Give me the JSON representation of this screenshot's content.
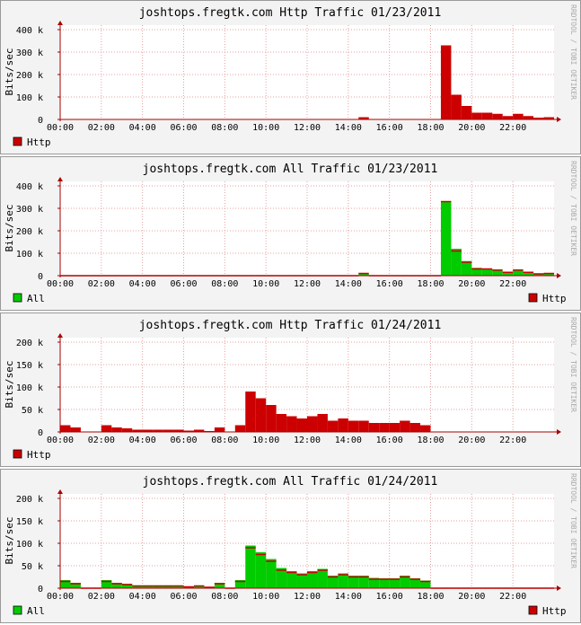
{
  "chart_data": [
    {
      "type": "bar",
      "title": "joshtops.fregtk.com Http Traffic 01/23/2011",
      "y_label": "Bits/sec",
      "watermark": "RRDTOOL / TOBI OETIKER",
      "grid": true,
      "xlim": [
        0,
        24
      ],
      "ylim": [
        0,
        420000
      ],
      "xticks": [
        {
          "value": 0,
          "label": "00:00"
        },
        {
          "value": 2,
          "label": "02:00"
        },
        {
          "value": 4,
          "label": "04:00"
        },
        {
          "value": 6,
          "label": "06:00"
        },
        {
          "value": 8,
          "label": "08:00"
        },
        {
          "value": 10,
          "label": "10:00"
        },
        {
          "value": 12,
          "label": "12:00"
        },
        {
          "value": 14,
          "label": "14:00"
        },
        {
          "value": 16,
          "label": "16:00"
        },
        {
          "value": 18,
          "label": "18:00"
        },
        {
          "value": 20,
          "label": "20:00"
        },
        {
          "value": 22,
          "label": "22:00"
        }
      ],
      "yticks": [
        0,
        {
          "value": 100000,
          "label": "100 k"
        },
        {
          "value": 200000,
          "label": "200 k"
        },
        {
          "value": 300000,
          "label": "300 k"
        },
        {
          "value": 400000,
          "label": "400 k"
        }
      ],
      "x": [
        0,
        0.5,
        1,
        1.5,
        2,
        2.5,
        3,
        3.5,
        4,
        4.5,
        5,
        5.5,
        6,
        6.5,
        7,
        7.5,
        8,
        8.5,
        9,
        9.5,
        10,
        10.5,
        11,
        11.5,
        12,
        12.5,
        13,
        13.5,
        14,
        14.5,
        15,
        15.5,
        16,
        16.5,
        17,
        17.5,
        18,
        18.5,
        19,
        19.5,
        20,
        20.5,
        21,
        21.5,
        22,
        22.5,
        23,
        23.5
      ],
      "series": [
        {
          "name": "Http",
          "color": "#cc0000",
          "style": "bar",
          "values": [
            0,
            0,
            0,
            0,
            0,
            0,
            0,
            0,
            0,
            0,
            0,
            0,
            0,
            0,
            0,
            0,
            0,
            0,
            0,
            0,
            0,
            0,
            0,
            0,
            0,
            0,
            0,
            0,
            0,
            10000,
            0,
            0,
            0,
            0,
            0,
            0,
            0,
            330000,
            110000,
            60000,
            30000,
            30000,
            25000,
            15000,
            25000,
            15000,
            8000,
            10000
          ]
        }
      ]
    },
    {
      "type": "bar",
      "title": "joshtops.fregtk.com All Traffic 01/23/2011",
      "y_label": "Bits/sec",
      "watermark": "RRDTOOL / TOBI OETIKER",
      "grid": true,
      "xlim": [
        0,
        24
      ],
      "ylim": [
        0,
        420000
      ],
      "xticks": [
        {
          "value": 0,
          "label": "00:00"
        },
        {
          "value": 2,
          "label": "02:00"
        },
        {
          "value": 4,
          "label": "04:00"
        },
        {
          "value": 6,
          "label": "06:00"
        },
        {
          "value": 8,
          "label": "08:00"
        },
        {
          "value": 10,
          "label": "10:00"
        },
        {
          "value": 12,
          "label": "12:00"
        },
        {
          "value": 14,
          "label": "14:00"
        },
        {
          "value": 16,
          "label": "16:00"
        },
        {
          "value": 18,
          "label": "18:00"
        },
        {
          "value": 20,
          "label": "20:00"
        },
        {
          "value": 22,
          "label": "22:00"
        }
      ],
      "yticks": [
        0,
        {
          "value": 100000,
          "label": "100 k"
        },
        {
          "value": 200000,
          "label": "200 k"
        },
        {
          "value": 300000,
          "label": "300 k"
        },
        {
          "value": 400000,
          "label": "400 k"
        }
      ],
      "x": [
        0,
        0.5,
        1,
        1.5,
        2,
        2.5,
        3,
        3.5,
        4,
        4.5,
        5,
        5.5,
        6,
        6.5,
        7,
        7.5,
        8,
        8.5,
        9,
        9.5,
        10,
        10.5,
        11,
        11.5,
        12,
        12.5,
        13,
        13.5,
        14,
        14.5,
        15,
        15.5,
        16,
        16.5,
        17,
        17.5,
        18,
        18.5,
        19,
        19.5,
        20,
        20.5,
        21,
        21.5,
        22,
        22.5,
        23,
        23.5
      ],
      "series": [
        {
          "name": "All",
          "color": "#00cc00",
          "style": "bar",
          "values": [
            0,
            0,
            0,
            0,
            0,
            0,
            0,
            0,
            0,
            0,
            0,
            0,
            0,
            0,
            0,
            0,
            0,
            0,
            0,
            0,
            0,
            0,
            0,
            0,
            0,
            0,
            0,
            0,
            0,
            10000,
            0,
            0,
            0,
            0,
            0,
            0,
            0,
            330000,
            120000,
            65000,
            35000,
            30000,
            25000,
            15000,
            25000,
            18000,
            10000,
            10000
          ]
        },
        {
          "name": "Http",
          "color": "#cc0000",
          "style": "outline",
          "values": [
            0,
            0,
            0,
            0,
            0,
            0,
            0,
            0,
            0,
            0,
            0,
            0,
            0,
            0,
            0,
            0,
            0,
            0,
            0,
            0,
            0,
            0,
            0,
            0,
            0,
            0,
            0,
            0,
            0,
            10000,
            0,
            0,
            0,
            0,
            0,
            0,
            0,
            330000,
            110000,
            60000,
            30000,
            30000,
            25000,
            15000,
            25000,
            15000,
            8000,
            10000
          ]
        }
      ]
    },
    {
      "type": "bar",
      "title": "joshtops.fregtk.com Http Traffic 01/24/2011",
      "y_label": "Bits/sec",
      "watermark": "RRDTOOL / TOBI OETIKER",
      "grid": true,
      "xlim": [
        0,
        24
      ],
      "ylim": [
        0,
        210000
      ],
      "xticks": [
        {
          "value": 0,
          "label": "00:00"
        },
        {
          "value": 2,
          "label": "02:00"
        },
        {
          "value": 4,
          "label": "04:00"
        },
        {
          "value": 6,
          "label": "06:00"
        },
        {
          "value": 8,
          "label": "08:00"
        },
        {
          "value": 10,
          "label": "10:00"
        },
        {
          "value": 12,
          "label": "12:00"
        },
        {
          "value": 14,
          "label": "14:00"
        },
        {
          "value": 16,
          "label": "16:00"
        },
        {
          "value": 18,
          "label": "18:00"
        },
        {
          "value": 20,
          "label": "20:00"
        },
        {
          "value": 22,
          "label": "22:00"
        }
      ],
      "yticks": [
        0,
        {
          "value": 50000,
          "label": "50 k"
        },
        {
          "value": 100000,
          "label": "100 k"
        },
        {
          "value": 150000,
          "label": "150 k"
        },
        {
          "value": 200000,
          "label": "200 k"
        }
      ],
      "x": [
        0,
        0.5,
        1,
        1.5,
        2,
        2.5,
        3,
        3.5,
        4,
        4.5,
        5,
        5.5,
        6,
        6.5,
        7,
        7.5,
        8,
        8.5,
        9,
        9.5,
        10,
        10.5,
        11,
        11.5,
        12,
        12.5,
        13,
        13.5,
        14,
        14.5,
        15,
        15.5,
        16,
        16.5,
        17,
        17.5,
        18,
        18.5,
        19,
        19.5,
        20,
        20.5,
        21,
        21.5,
        22,
        22.5,
        23,
        23.5
      ],
      "series": [
        {
          "name": "Http",
          "color": "#cc0000",
          "style": "bar",
          "values": [
            15000,
            10000,
            0,
            0,
            15000,
            10000,
            8000,
            5000,
            5000,
            5000,
            5000,
            5000,
            3000,
            5000,
            2000,
            10000,
            0,
            15000,
            90000,
            75000,
            60000,
            40000,
            35000,
            30000,
            35000,
            40000,
            25000,
            30000,
            25000,
            25000,
            20000,
            20000,
            20000,
            25000,
            20000,
            15000,
            0,
            0,
            0,
            0,
            0,
            0,
            0,
            0,
            0,
            0,
            0,
            0
          ]
        }
      ]
    },
    {
      "type": "bar",
      "title": "joshtops.fregtk.com All Traffic 01/24/2011",
      "y_label": "Bits/sec",
      "watermark": "RRDTOOL / TOBI OETIKER",
      "grid": true,
      "xlim": [
        0,
        24
      ],
      "ylim": [
        0,
        210000
      ],
      "xticks": [
        {
          "value": 0,
          "label": "00:00"
        },
        {
          "value": 2,
          "label": "02:00"
        },
        {
          "value": 4,
          "label": "04:00"
        },
        {
          "value": 6,
          "label": "06:00"
        },
        {
          "value": 8,
          "label": "08:00"
        },
        {
          "value": 10,
          "label": "10:00"
        },
        {
          "value": 12,
          "label": "12:00"
        },
        {
          "value": 14,
          "label": "14:00"
        },
        {
          "value": 16,
          "label": "16:00"
        },
        {
          "value": 18,
          "label": "18:00"
        },
        {
          "value": 20,
          "label": "20:00"
        },
        {
          "value": 22,
          "label": "22:00"
        }
      ],
      "yticks": [
        0,
        {
          "value": 50000,
          "label": "50 k"
        },
        {
          "value": 100000,
          "label": "100 k"
        },
        {
          "value": 150000,
          "label": "150 k"
        },
        {
          "value": 200000,
          "label": "200 k"
        }
      ],
      "x": [
        0,
        0.5,
        1,
        1.5,
        2,
        2.5,
        3,
        3.5,
        4,
        4.5,
        5,
        5.5,
        6,
        6.5,
        7,
        7.5,
        8,
        8.5,
        9,
        9.5,
        10,
        10.5,
        11,
        11.5,
        12,
        12.5,
        13,
        13.5,
        14,
        14.5,
        15,
        15.5,
        16,
        16.5,
        17,
        17.5,
        18,
        18.5,
        19,
        19.5,
        20,
        20.5,
        21,
        21.5,
        22,
        22.5,
        23,
        23.5
      ],
      "series": [
        {
          "name": "All",
          "color": "#00cc00",
          "style": "bar",
          "values": [
            18000,
            12000,
            0,
            0,
            18000,
            12000,
            10000,
            6000,
            6000,
            6000,
            6000,
            6000,
            4000,
            6000,
            3000,
            12000,
            0,
            18000,
            95000,
            80000,
            65000,
            45000,
            38000,
            33000,
            38000,
            43000,
            28000,
            33000,
            28000,
            28000,
            23000,
            22000,
            22000,
            28000,
            22000,
            17000,
            0,
            0,
            0,
            0,
            0,
            0,
            0,
            0,
            0,
            0,
            0,
            0
          ]
        },
        {
          "name": "Http",
          "color": "#cc0000",
          "style": "outline",
          "values": [
            15000,
            10000,
            0,
            0,
            15000,
            10000,
            8000,
            5000,
            5000,
            5000,
            5000,
            5000,
            3000,
            5000,
            2000,
            10000,
            0,
            15000,
            90000,
            75000,
            60000,
            40000,
            35000,
            30000,
            35000,
            40000,
            25000,
            30000,
            25000,
            25000,
            20000,
            20000,
            20000,
            25000,
            20000,
            15000,
            0,
            0,
            0,
            0,
            0,
            0,
            0,
            0,
            0,
            0,
            0,
            0
          ]
        }
      ]
    }
  ]
}
